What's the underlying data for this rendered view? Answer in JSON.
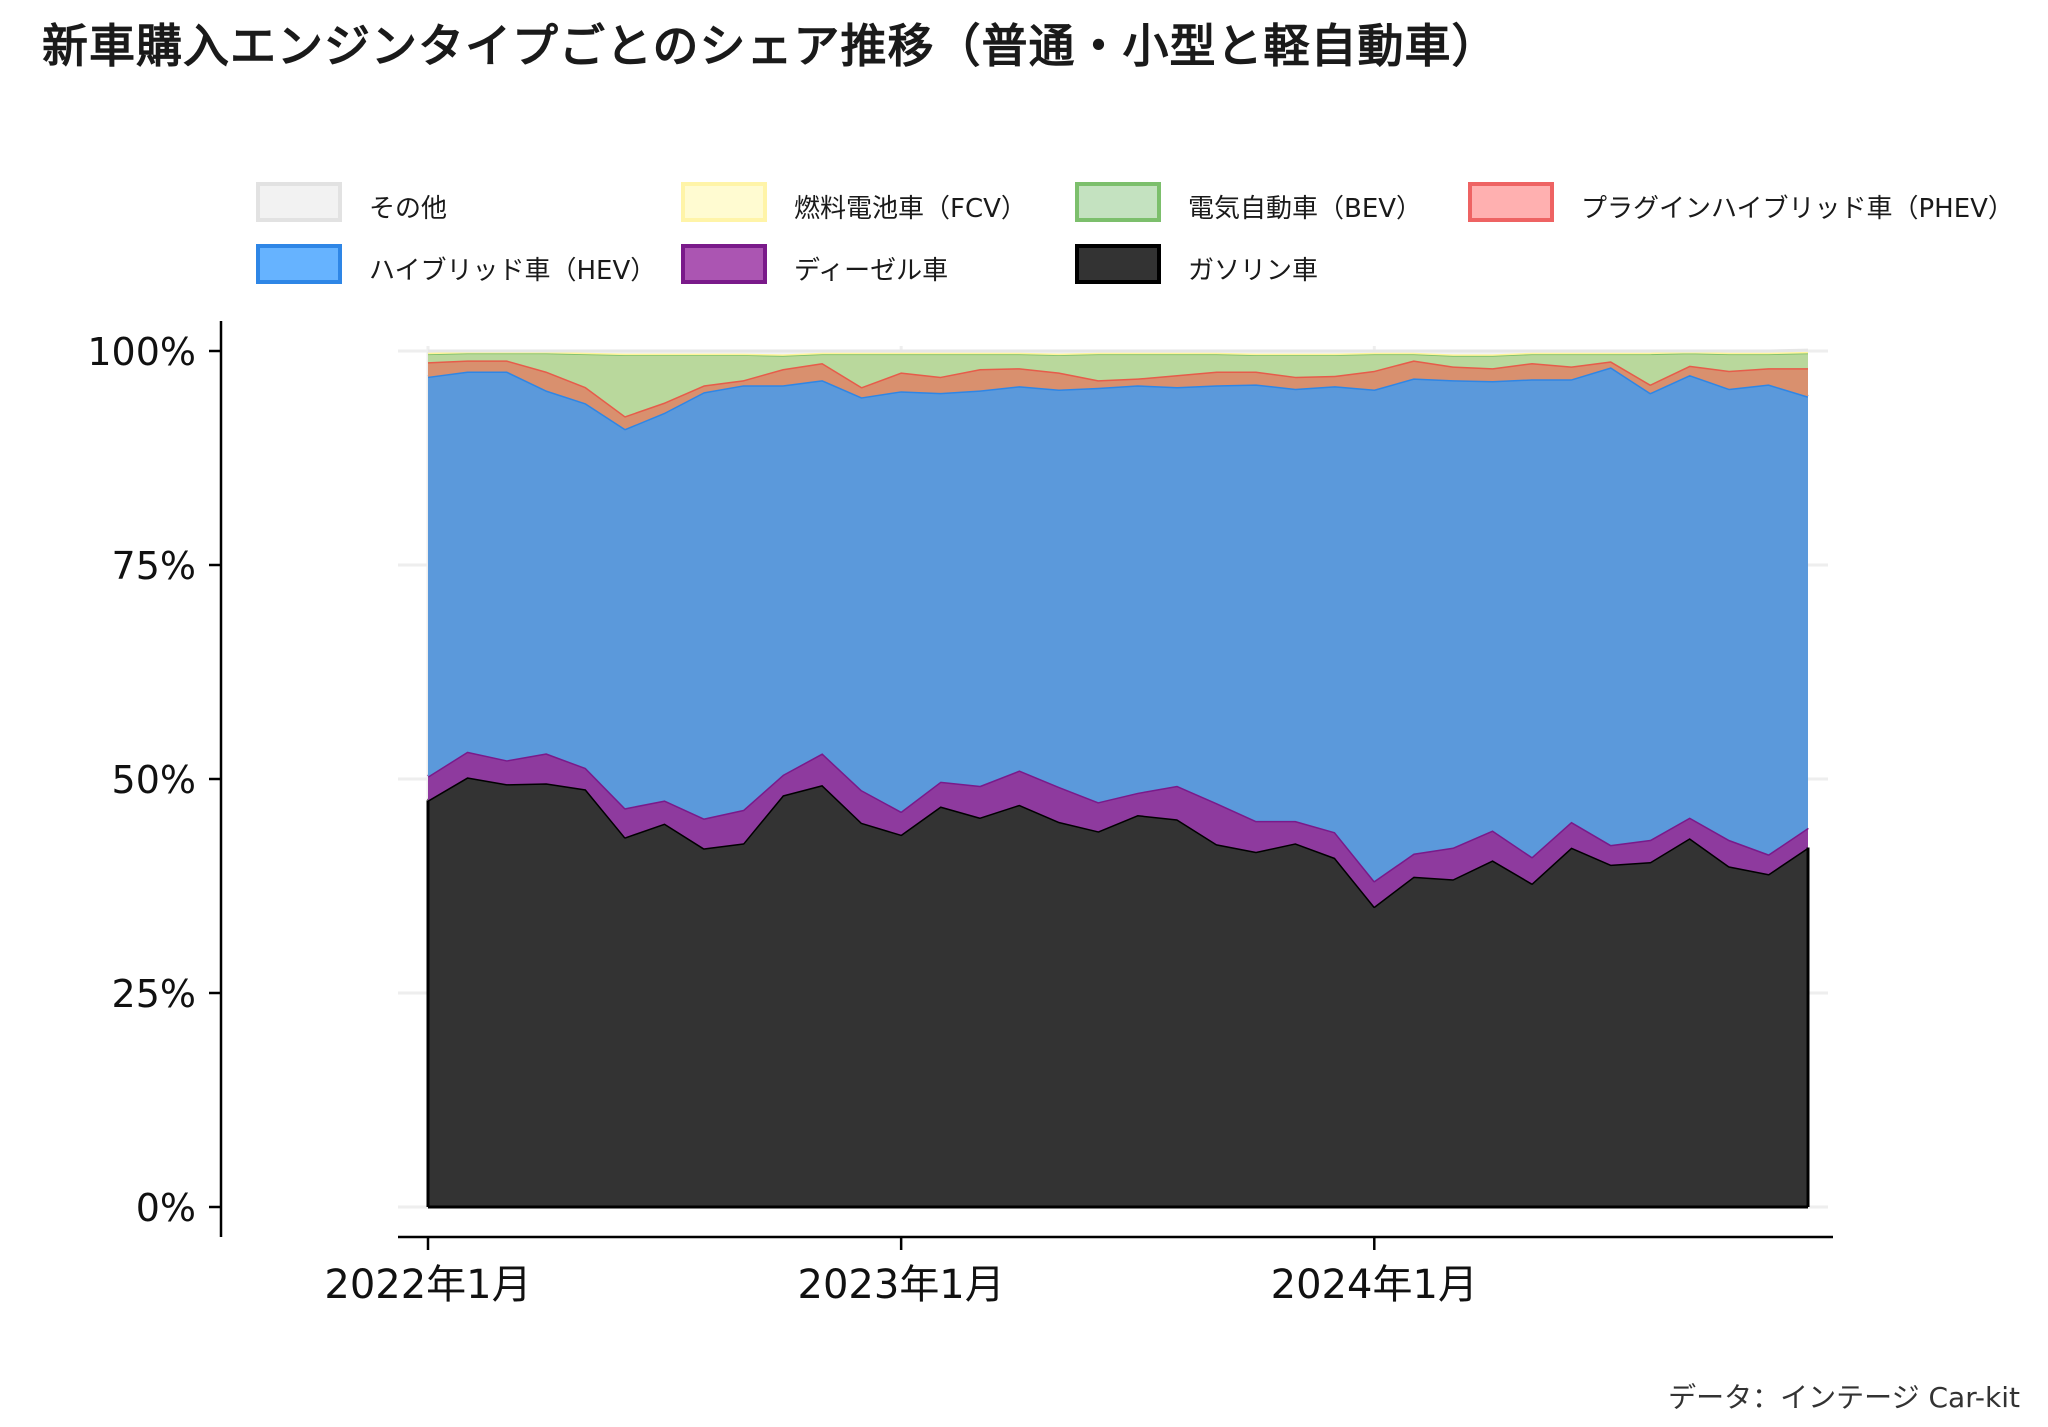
{
  "title": "新車購入エンジンタイプごとのシェア推移（普通・小型と軽自動車）",
  "source": "データ：インテージ Car-kit",
  "chart_data": {
    "type": "area",
    "stacked": true,
    "y_axis": {
      "range": [
        0,
        100
      ],
      "ticks": [
        "0%",
        "25%",
        "50%",
        "75%",
        "100%"
      ]
    },
    "x_axis": {
      "ticks": [
        "2022年1月",
        "2023年1月",
        "2024年1月"
      ]
    },
    "grid": true,
    "legend_position": "top",
    "x": [
      "2022-01",
      "2022-02",
      "2022-03",
      "2022-04",
      "2022-05",
      "2022-06",
      "2022-07",
      "2022-08",
      "2022-09",
      "2022-10",
      "2022-11",
      "2022-12",
      "2023-01",
      "2023-02",
      "2023-03",
      "2023-04",
      "2023-05",
      "2023-06",
      "2023-07",
      "2023-08",
      "2023-09",
      "2023-10",
      "2023-11",
      "2023-12",
      "2024-01",
      "2024-02",
      "2024-03",
      "2024-04",
      "2024-05",
      "2024-06",
      "2024-07",
      "2024-08",
      "2024-09",
      "2024-10",
      "2024-11",
      "2024-12"
    ],
    "series": [
      {
        "name": "ガソリン車",
        "fill": "#333333",
        "stroke": "#000000",
        "values": [
          47.5,
          50.2,
          49.4,
          49.5,
          48.8,
          43.2,
          44.8,
          41.9,
          42.5,
          48.1,
          49.3,
          44.9,
          43.5,
          46.8,
          45.5,
          47.0,
          45.0,
          43.9,
          45.8,
          45.3,
          42.4,
          41.5,
          42.5,
          40.8,
          35.1,
          38.6,
          38.3,
          40.5,
          37.8,
          42.0,
          40.0,
          40.3,
          43.1,
          39.8,
          38.9,
          42.0
        ]
      },
      {
        "name": "ディーゼル車",
        "fill": "#8e3a9e",
        "stroke": "#7a1a8a",
        "values": [
          2.8,
          3.0,
          2.8,
          3.5,
          2.5,
          3.4,
          2.7,
          3.5,
          3.9,
          2.4,
          3.7,
          3.8,
          2.7,
          2.9,
          3.7,
          4.0,
          4.1,
          3.4,
          2.6,
          3.9,
          4.8,
          3.6,
          2.6,
          3.0,
          3.0,
          2.7,
          3.7,
          3.5,
          3.1,
          3.0,
          2.3,
          2.6,
          2.4,
          3.1,
          2.3,
          2.3
        ]
      },
      {
        "name": "ハイブリッド車（HEV）",
        "fill": "#5b99db",
        "stroke": "#2e86e6",
        "values": [
          46.7,
          44.4,
          45.4,
          42.4,
          42.6,
          44.3,
          45.3,
          49.8,
          49.6,
          45.5,
          43.6,
          45.9,
          49.1,
          45.4,
          46.2,
          44.9,
          46.4,
          48.4,
          47.6,
          46.6,
          48.8,
          51.0,
          50.5,
          52.1,
          57.4,
          55.5,
          54.6,
          52.5,
          55.8,
          51.7,
          55.8,
          52.2,
          51.7,
          52.7,
          54.9,
          50.4
        ]
      },
      {
        "name": "プラグインハイブリッド車（PHEV）",
        "fill": "#d9906e",
        "stroke": "#e65c4a",
        "values": [
          1.7,
          1.3,
          1.3,
          2.2,
          1.9,
          1.5,
          1.2,
          0.8,
          0.6,
          1.9,
          2.0,
          1.2,
          2.2,
          1.9,
          2.5,
          2.1,
          2.0,
          0.9,
          0.8,
          1.4,
          1.6,
          1.5,
          1.4,
          1.2,
          2.2,
          2.1,
          1.6,
          1.5,
          1.9,
          1.5,
          0.7,
          1.0,
          1.1,
          2.1,
          1.9,
          3.3
        ]
      },
      {
        "name": "電気自動車（BEV）",
        "fill": "#b9d89c",
        "stroke": "#7cbf6c",
        "values": [
          1.0,
          0.9,
          0.9,
          2.2,
          3.9,
          7.2,
          5.6,
          3.6,
          3.0,
          1.6,
          1.1,
          3.9,
          2.2,
          2.7,
          1.8,
          1.7,
          2.1,
          3.1,
          2.9,
          2.5,
          2.1,
          2.0,
          2.6,
          2.5,
          2.0,
          0.8,
          1.3,
          1.5,
          1.1,
          1.5,
          0.9,
          3.6,
          1.5,
          2.0,
          1.7,
          1.8
        ]
      },
      {
        "name": "燃料電池車（FCV）",
        "fill": "#fffbd1",
        "stroke": "#fff59a",
        "values": [
          0.1,
          0.1,
          0.1,
          0.1,
          0.1,
          0.1,
          0.1,
          0.1,
          0.1,
          0.1,
          0.1,
          0.1,
          0.1,
          0.1,
          0.1,
          0.1,
          0.1,
          0.1,
          0.1,
          0.1,
          0.1,
          0.1,
          0.1,
          0.1,
          0.1,
          0.1,
          0.1,
          0.1,
          0.1,
          0.1,
          0.1,
          0.1,
          0.1,
          0.1,
          0.1,
          0.1
        ]
      },
      {
        "name": "その他",
        "fill": "#f2f2f2",
        "stroke": "#e6e6e6",
        "values": [
          0.2,
          0.1,
          0.1,
          0.1,
          0.2,
          0.3,
          0.3,
          0.3,
          0.3,
          0.4,
          0.2,
          0.2,
          0.2,
          0.2,
          0.2,
          0.2,
          0.3,
          0.2,
          0.2,
          0.2,
          0.2,
          0.3,
          0.3,
          0.3,
          0.2,
          0.2,
          0.4,
          0.4,
          0.2,
          0.2,
          0.2,
          0.2,
          0.1,
          0.2,
          0.2,
          0.2
        ]
      }
    ],
    "legend": [
      {
        "name": "その他",
        "fill": "#f2f2f2",
        "stroke": "#e2e2e2"
      },
      {
        "name": "燃料電池車（FCV）",
        "fill": "#fffbd1",
        "stroke": "#fff4a8"
      },
      {
        "name": "電気自動車（BEV）",
        "fill": "#c4e2c0",
        "stroke": "#7cbf6c"
      },
      {
        "name": "プラグインハイブリッド車（PHEV）",
        "fill": "#ffb0b0",
        "stroke": "#ee6363"
      },
      {
        "name": "ハイブリッド車（HEV）",
        "fill": "#66b3ff",
        "stroke": "#2e86e6"
      },
      {
        "name": "ディーゼル車",
        "fill": "#ab55b2",
        "stroke": "#7a1a8a"
      },
      {
        "name": "ガソリン車",
        "fill": "#333333",
        "stroke": "#000000"
      }
    ]
  }
}
